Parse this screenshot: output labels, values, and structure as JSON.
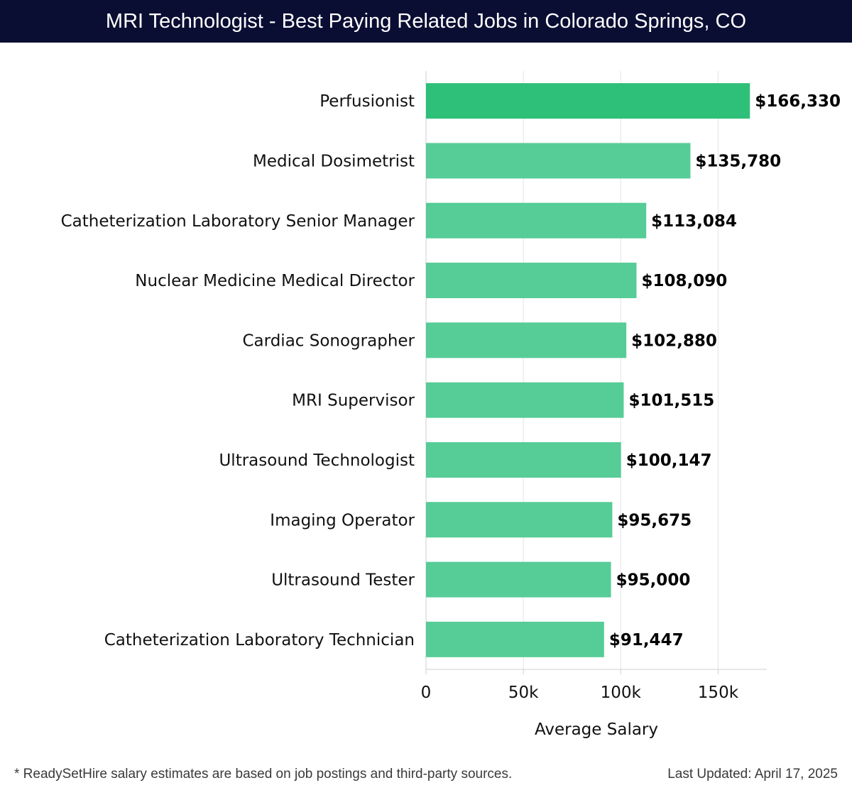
{
  "header": {
    "title": "MRI Technologist - Best Paying Related Jobs in Colorado Springs, CO"
  },
  "chart_data": {
    "type": "bar",
    "orientation": "horizontal",
    "title": "MRI Technologist - Best Paying Related Jobs in Colorado Springs, CO",
    "categories": [
      "Perfusionist",
      "Medical Dosimetrist",
      "Catheterization Laboratory Senior Manager",
      "Nuclear Medicine Medical Director",
      "Cardiac Sonographer",
      "MRI Supervisor",
      "Ultrasound Technologist",
      "Imaging Operator",
      "Ultrasound Tester",
      "Catheterization Laboratory Technician"
    ],
    "values": [
      166330,
      135780,
      113084,
      108090,
      102880,
      101515,
      100147,
      95675,
      95000,
      91447
    ],
    "value_labels": [
      "$166,330",
      "$135,780",
      "$113,084",
      "$108,090",
      "$102,880",
      "$101,515",
      "$100,147",
      "$95,675",
      "$95,000",
      "$91,447"
    ],
    "xlabel": "Average Salary",
    "ylabel": "",
    "xlim": [
      0,
      175000
    ],
    "xticks": [
      0,
      50000,
      100000,
      150000
    ],
    "xtick_labels": [
      "0",
      "50k",
      "100k",
      "150k"
    ],
    "grid": true,
    "colors": {
      "top_bar": "#2ebf78",
      "bar": "#56cc96",
      "grid": "#e3e3e3",
      "axis": "#cfcfcf",
      "header_bg": "#0b0e33"
    }
  },
  "footer": {
    "note": "* ReadySetHire salary estimates are based on job postings and third-party sources.",
    "updated": "Last Updated: April 17, 2025"
  }
}
